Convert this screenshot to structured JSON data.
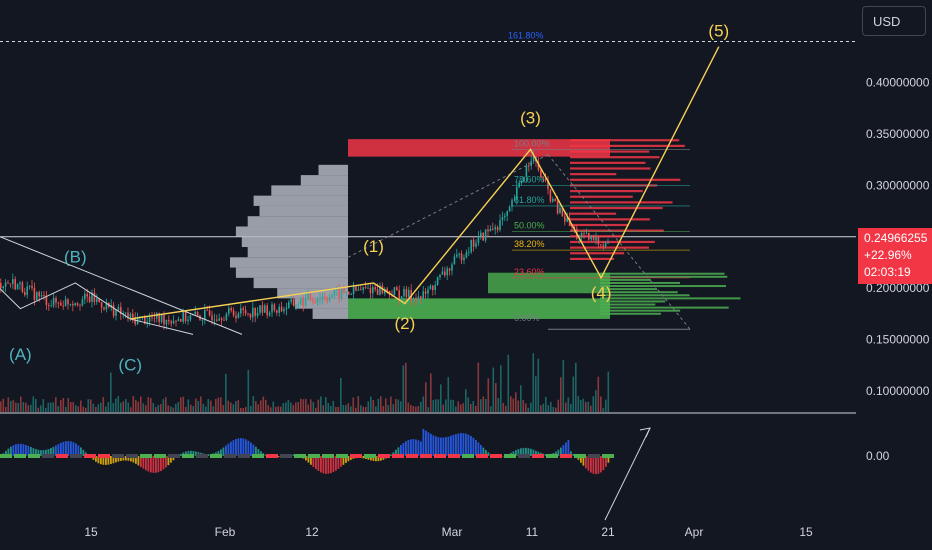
{
  "price_scale": {
    "currency_label": "USD",
    "tick_labels": [
      "0.40000000",
      "0.35000000",
      "0.30000000",
      "0.25000000",
      "0.20000000",
      "0.15000000",
      "0.10000000"
    ],
    "tick_values": [
      0.4,
      0.35,
      0.3,
      0.25,
      0.2,
      0.15,
      0.1
    ],
    "oscillator_zero_label": "0.00"
  },
  "last_price": {
    "value_label": "0.24966255",
    "change_label": "+22.96%",
    "countdown_label": "02:03:19",
    "value": 0.24966255,
    "color": "#f23645"
  },
  "time_axis": {
    "labels": [
      "15",
      "Feb",
      "12",
      "Mar",
      "11",
      "21",
      "Apr",
      "15"
    ]
  },
  "chart_data": {
    "type": "line",
    "title": "",
    "xlabel": "",
    "ylabel": "",
    "ylim": [
      0.08,
      0.45
    ],
    "grid": false,
    "price_path_approx": {
      "x": [
        "Jan 05",
        "Jan 10",
        "Jan 15",
        "Jan 20",
        "Jan 25",
        "Feb 01",
        "Feb 08",
        "Feb 12",
        "Feb 20",
        "Feb 26",
        "Mar 03",
        "Mar 08",
        "Mar 11",
        "Mar 14",
        "Mar 17",
        "Mar 20"
      ],
      "y": [
        0.205,
        0.185,
        0.19,
        0.17,
        0.17,
        0.175,
        0.18,
        0.19,
        0.2,
        0.19,
        0.24,
        0.27,
        0.33,
        0.28,
        0.25,
        0.245
      ]
    },
    "wave_labels": [
      {
        "label": "(A)",
        "x": "Jan 06",
        "y": 0.13
      },
      {
        "label": "(B)",
        "x": "Jan 13",
        "y": 0.225
      },
      {
        "label": "(C)",
        "x": "Jan 20",
        "y": 0.12
      },
      {
        "label": "(1)",
        "x": "Feb 20",
        "y": 0.235
      },
      {
        "label": "(2)",
        "x": "Feb 24",
        "y": 0.16
      },
      {
        "label": "(3)",
        "x": "Mar 11",
        "y": 0.36
      },
      {
        "label": "(4)",
        "x": "Mar 20",
        "y": 0.19
      },
      {
        "label": "(5)",
        "x": "Apr 04",
        "y": 0.445
      }
    ],
    "elliott_wave_path": {
      "x": [
        "Jan 20",
        "Feb 20",
        "Feb 24",
        "Mar 11",
        "Mar 20",
        "Apr 04"
      ],
      "y": [
        0.17,
        0.205,
        0.185,
        0.335,
        0.21,
        0.435
      ]
    },
    "corrective_abc_path": {
      "x": [
        "Dec 31",
        "Jan 06",
        "Jan 13",
        "Jan 20",
        "Jan 28"
      ],
      "y": [
        0.225,
        0.18,
        0.205,
        0.17,
        0.155
      ]
    },
    "fibonacci_levels": [
      {
        "label": "161.80%",
        "price": 0.44
      },
      {
        "label": "100.00%",
        "price": 0.335
      },
      {
        "label": "78.60%",
        "price": 0.3
      },
      {
        "label": "61.80%",
        "price": 0.28
      },
      {
        "label": "50.00%",
        "price": 0.255
      },
      {
        "label": "38.20%",
        "price": 0.237
      },
      {
        "label": "23.60%",
        "price": 0.21
      },
      {
        "label": "0.00%",
        "price": 0.165
      }
    ],
    "horizontal_line_price": 0.25,
    "volume_profile": {
      "prices": [
        0.175,
        0.185,
        0.195,
        0.205,
        0.215,
        0.225,
        0.235,
        0.245,
        0.255,
        0.265,
        0.275,
        0.285,
        0.295,
        0.305,
        0.315
      ],
      "volumes": [
        0.3,
        0.45,
        0.6,
        0.8,
        0.95,
        1.0,
        0.85,
        0.9,
        0.95,
        0.85,
        0.75,
        0.8,
        0.65,
        0.4,
        0.25
      ]
    },
    "oscillator_zero": 0
  }
}
